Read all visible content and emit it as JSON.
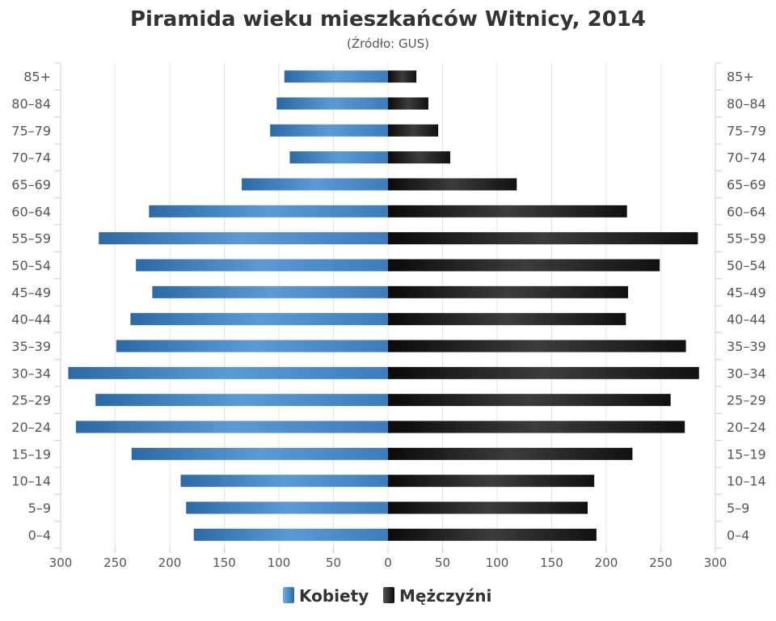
{
  "chart_data": {
    "type": "bar",
    "orientation": "horizontal",
    "layout": "population-pyramid",
    "title": "Piramida wieku mieszkańców Witnicy, 2014",
    "subtitle": "(Źródło: GUS)",
    "categories": [
      "0–4",
      "5–9",
      "10–14",
      "15–19",
      "20–24",
      "25–29",
      "30–34",
      "35–39",
      "40–44",
      "45–49",
      "50–54",
      "55–59",
      "60–64",
      "65–69",
      "70–74",
      "75–79",
      "80–84",
      "85+"
    ],
    "series": [
      {
        "name": "Kobiety",
        "side": "left",
        "color": "#3a78b6",
        "values": [
          178,
          185,
          190,
          235,
          286,
          268,
          293,
          249,
          236,
          216,
          231,
          265,
          219,
          134,
          90,
          108,
          102,
          95
        ]
      },
      {
        "name": "Mężczyźni",
        "side": "right",
        "color": "#1a1a1a",
        "values": [
          191,
          183,
          189,
          224,
          272,
          259,
          285,
          273,
          218,
          220,
          249,
          284,
          219,
          118,
          57,
          46,
          37,
          26
        ]
      }
    ],
    "xticks": [
      "300",
      "250",
      "200",
      "150",
      "100",
      "50",
      "0",
      "50",
      "100",
      "150",
      "200",
      "250",
      "300"
    ],
    "xlim": [
      -300,
      300
    ],
    "grid": true,
    "legend_position": "bottom-center",
    "category_labels_both_sides": true
  }
}
